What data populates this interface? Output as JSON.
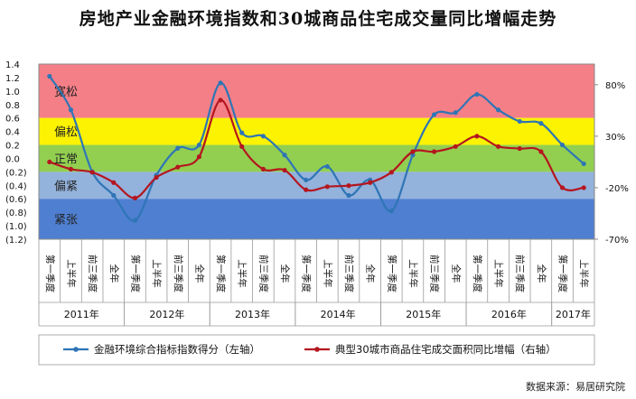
{
  "chart_data": {
    "type": "line",
    "title": "房地产业金融环境指数和30城商品住宅成交量同比增幅走势",
    "source": "数据来源：易居研究院",
    "zone_labels": [
      "宽松",
      "偏松",
      "正常",
      "偏紧",
      "紧张"
    ],
    "zone_colors": [
      "#f47f86",
      "#fbf301",
      "#92cf50",
      "#93b2dc",
      "#4f7fd1"
    ],
    "zone_bounds": [
      [
        0.6,
        1.4
      ],
      [
        0.2,
        0.6
      ],
      [
        -0.2,
        0.2
      ],
      [
        -0.6,
        -0.2
      ],
      [
        -1.2,
        -0.6
      ]
    ],
    "categories": [
      "第一季度",
      "上半年",
      "前三季度",
      "全年",
      "第一季度",
      "上半年",
      "前三季度",
      "全年",
      "第一季度",
      "上半年",
      "前三季度",
      "全年",
      "第一季度",
      "上半年",
      "前三季度",
      "全年",
      "第一季度",
      "上半年",
      "前三季度",
      "全年",
      "第一季度",
      "上半年",
      "前三季度",
      "全年",
      "第一季度",
      "上半年"
    ],
    "years": [
      {
        "label": "2011年",
        "start": 0,
        "count": 4
      },
      {
        "label": "2012年",
        "start": 4,
        "count": 4
      },
      {
        "label": "2013年",
        "start": 8,
        "count": 4
      },
      {
        "label": "2014年",
        "start": 12,
        "count": 4
      },
      {
        "label": "2015年",
        "start": 16,
        "count": 4
      },
      {
        "label": "2016年",
        "start": 20,
        "count": 4
      },
      {
        "label": "2017年",
        "start": 24,
        "count": 2
      }
    ],
    "y_left": {
      "min": -1.2,
      "max": 1.4,
      "ticks": [
        "1.4",
        "1.2",
        "1.0",
        "0.8",
        "0.6",
        "0.4",
        "0.2",
        "0.0",
        "(0.2)",
        "(0.4)",
        "(0.6)",
        "(0.8)",
        "(1.0)",
        "(1.2)"
      ]
    },
    "y_right": {
      "min": -70,
      "max": 100,
      "ticks": [
        {
          "v": 80,
          "label": "80%"
        },
        {
          "v": 30,
          "label": "30%"
        },
        {
          "v": -20,
          "label": "-20%"
        },
        {
          "v": -70,
          "label": "-70%"
        }
      ]
    },
    "series": [
      {
        "name": "金融环境综合指标指数得分（左轴）",
        "axis": "left",
        "color": "#2e75b6",
        "values": [
          1.22,
          0.72,
          -0.2,
          -0.55,
          -0.92,
          -0.25,
          0.15,
          0.2,
          1.12,
          0.38,
          0.33,
          0.05,
          -0.32,
          -0.12,
          -0.55,
          -0.32,
          -0.78,
          0.05,
          0.65,
          0.68,
          0.95,
          0.72,
          0.55,
          0.52,
          0.2,
          -0.08
        ]
      },
      {
        "name": "典型30城市商品住宅成交面积同比增幅（右轴）",
        "axis": "right",
        "color": "#b4161f",
        "values": [
          5,
          -2,
          -5,
          -15,
          -30,
          -10,
          0,
          10,
          65,
          20,
          -2,
          -3,
          -22,
          -19,
          -18,
          -15,
          -5,
          15,
          15,
          20,
          30,
          20,
          18,
          15,
          -20,
          -20
        ]
      }
    ]
  }
}
